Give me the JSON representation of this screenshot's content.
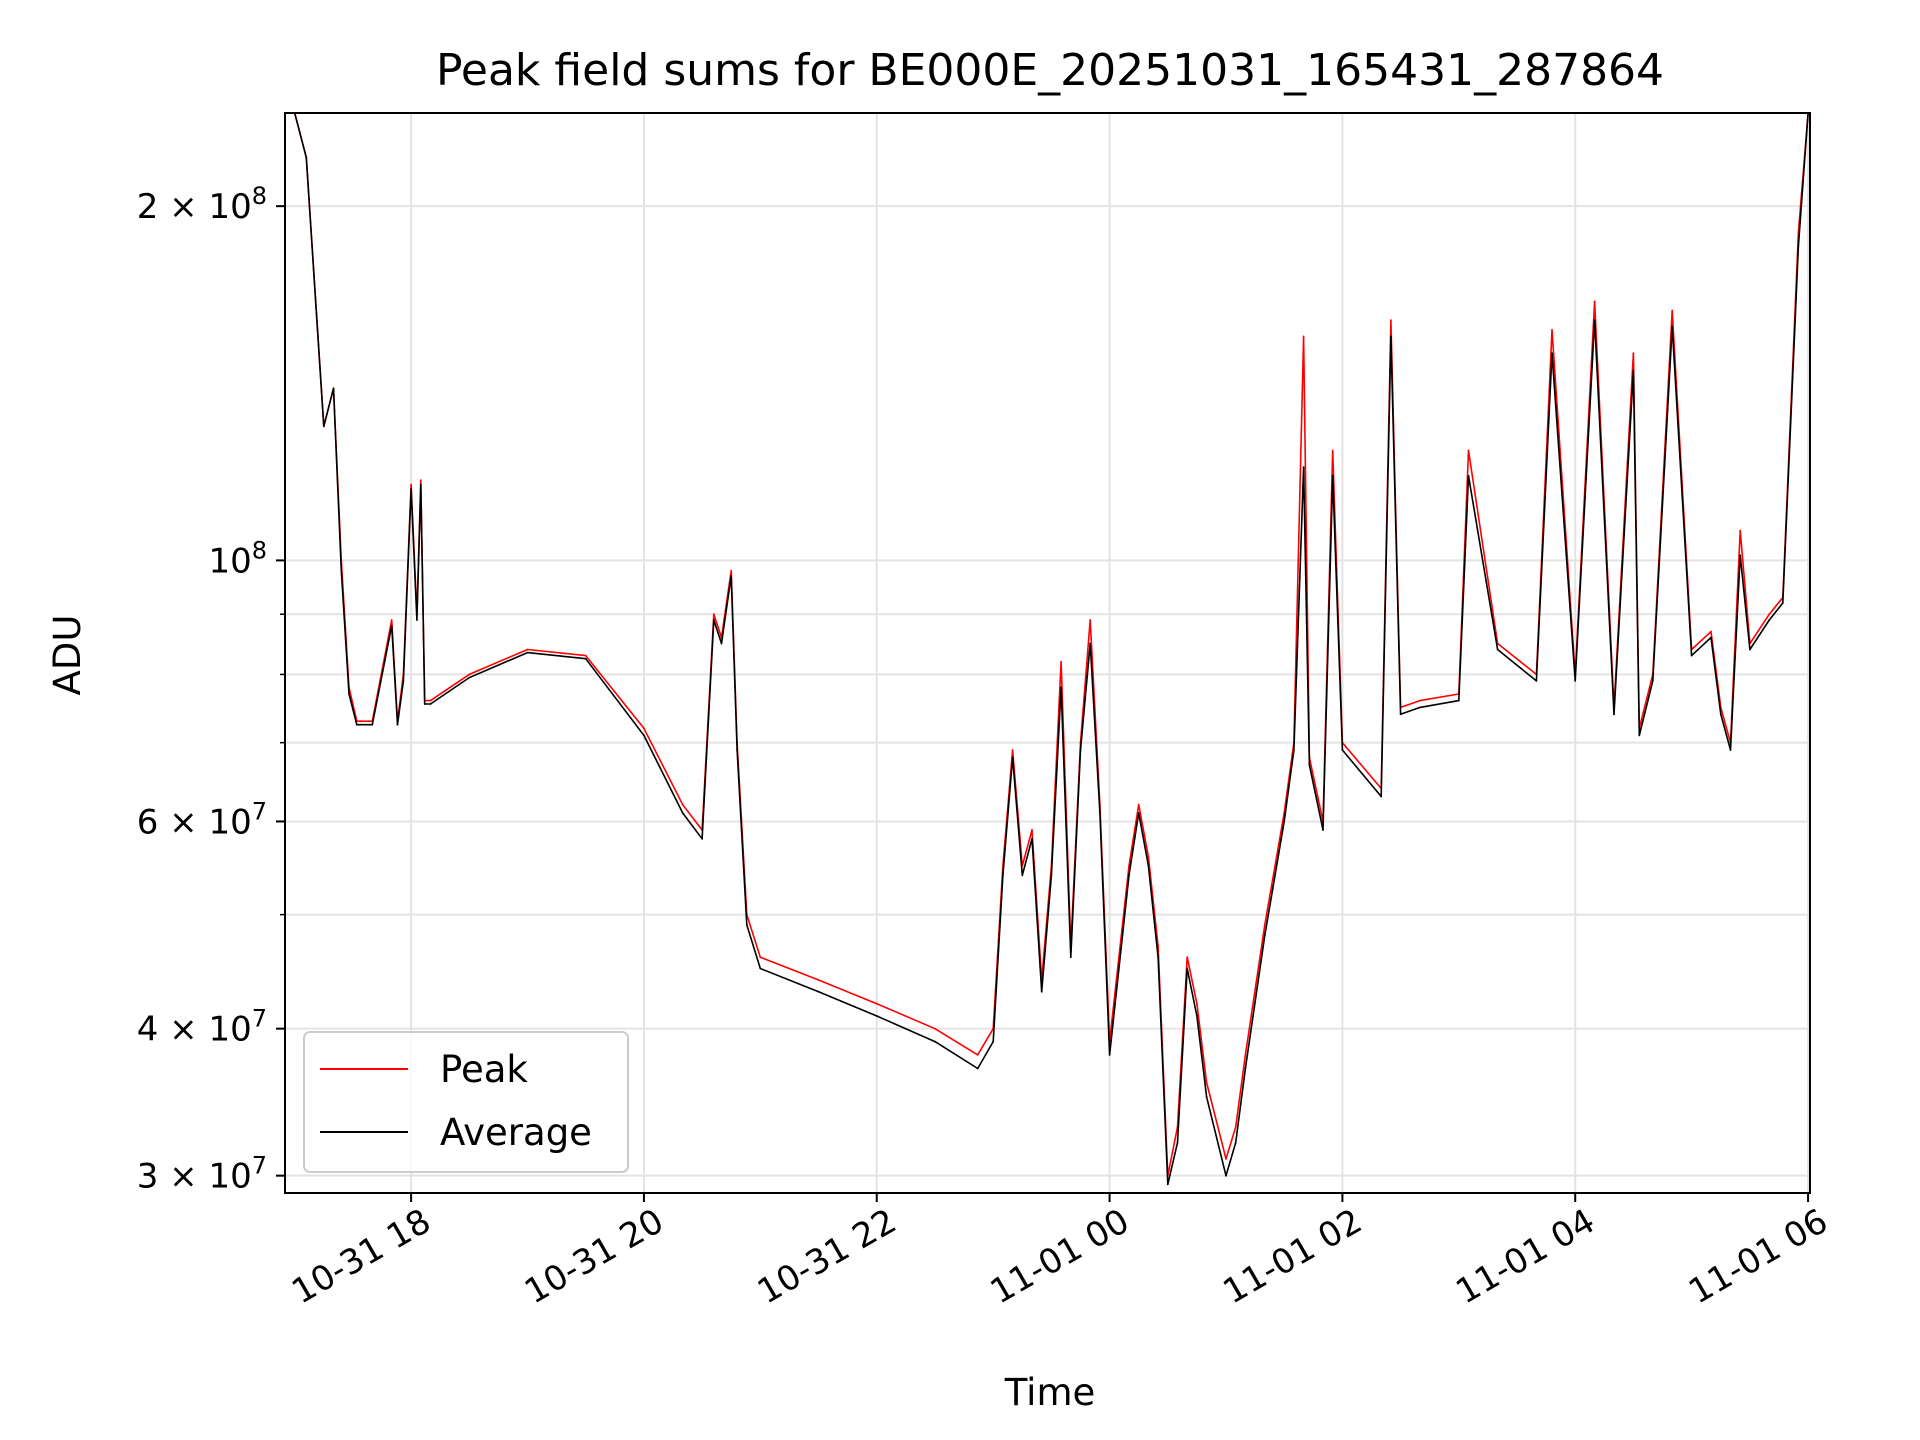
{
  "chart_data": {
    "type": "line",
    "title": "Peak field sums for BE000E_20251031_165431_287864",
    "xlabel": "Time",
    "ylabel": "ADU",
    "yscale": "log",
    "ylim": [
      29000000,
      240000000
    ],
    "xlim": [
      "2025-10-31 16:55",
      "2025-11-01 06:01"
    ],
    "grid": true,
    "legend": "lower-left",
    "colors": {
      "Peak": "#ff0000",
      "Average": "#000000"
    },
    "x_ticks": [
      {
        "value": "2025-10-31 18:00",
        "label": "10-31 18"
      },
      {
        "value": "2025-10-31 20:00",
        "label": "10-31 20"
      },
      {
        "value": "2025-10-31 22:00",
        "label": "10-31 22"
      },
      {
        "value": "2025-11-01 00:00",
        "label": "11-01 00"
      },
      {
        "value": "2025-11-01 02:00",
        "label": "11-01 02"
      },
      {
        "value": "2025-11-01 04:00",
        "label": "11-01 04"
      },
      {
        "value": "2025-11-01 06:00",
        "label": "11-01 06"
      }
    ],
    "y_ticks": [
      {
        "value": 30000000,
        "base": "3 × 10",
        "exp": "7"
      },
      {
        "value": 40000000,
        "base": "4 × 10",
        "exp": "7"
      },
      {
        "value": 60000000,
        "base": "6 × 10",
        "exp": "7"
      },
      {
        "value": 100000000,
        "base": "10",
        "exp": "8"
      },
      {
        "value": 200000000,
        "base": "2 × 10",
        "exp": "8"
      }
    ],
    "y_minor_ticks": [
      50000000,
      70000000,
      80000000,
      90000000
    ],
    "series": [
      {
        "name": "Peak",
        "x": [
          "2025-10-31 17:00",
          "2025-10-31 17:06",
          "2025-10-31 17:15",
          "2025-10-31 17:20",
          "2025-10-31 17:24",
          "2025-10-31 17:28",
          "2025-10-31 17:32",
          "2025-10-31 17:34",
          "2025-10-31 17:40",
          "2025-10-31 17:50",
          "2025-10-31 17:53",
          "2025-10-31 17:56",
          "2025-10-31 18:00",
          "2025-10-31 18:03",
          "2025-10-31 18:05",
          "2025-10-31 18:07",
          "2025-10-31 18:10",
          "2025-10-31 18:30",
          "2025-10-31 19:00",
          "2025-10-31 19:30",
          "2025-10-31 20:00",
          "2025-10-31 20:20",
          "2025-10-31 20:30",
          "2025-10-31 20:36",
          "2025-10-31 20:40",
          "2025-10-31 20:45",
          "2025-10-31 20:48",
          "2025-10-31 20:53",
          "2025-10-31 21:00",
          "2025-10-31 21:30",
          "2025-10-31 22:00",
          "2025-10-31 22:30",
          "2025-10-31 22:52",
          "2025-10-31 23:00",
          "2025-10-31 23:05",
          "2025-10-31 23:10",
          "2025-10-31 23:15",
          "2025-10-31 23:20",
          "2025-10-31 23:25",
          "2025-10-31 23:30",
          "2025-10-31 23:35",
          "2025-10-31 23:40",
          "2025-10-31 23:45",
          "2025-10-31 23:50",
          "2025-10-31 23:55",
          "2025-11-01 00:00",
          "2025-11-01 00:10",
          "2025-11-01 00:15",
          "2025-11-01 00:20",
          "2025-11-01 00:25",
          "2025-11-01 00:30",
          "2025-11-01 00:35",
          "2025-11-01 00:40",
          "2025-11-01 00:45",
          "2025-11-01 00:50",
          "2025-11-01 01:00",
          "2025-11-01 01:05",
          "2025-11-01 01:10",
          "2025-11-01 01:20",
          "2025-11-01 01:30",
          "2025-11-01 01:35",
          "2025-11-01 01:40",
          "2025-11-01 01:43",
          "2025-11-01 01:50",
          "2025-11-01 01:55",
          "2025-11-01 02:00",
          "2025-11-01 02:20",
          "2025-11-01 02:25",
          "2025-11-01 02:30",
          "2025-11-01 02:40",
          "2025-11-01 03:00",
          "2025-11-01 03:05",
          "2025-11-01 03:20",
          "2025-11-01 03:40",
          "2025-11-01 03:48",
          "2025-11-01 04:00",
          "2025-11-01 04:10",
          "2025-11-01 04:20",
          "2025-11-01 04:30",
          "2025-11-01 04:33",
          "2025-11-01 04:40",
          "2025-11-01 04:50",
          "2025-11-01 05:00",
          "2025-11-01 05:10",
          "2025-11-01 05:15",
          "2025-11-01 05:20",
          "2025-11-01 05:25",
          "2025-11-01 05:30",
          "2025-11-01 05:40",
          "2025-11-01 05:47",
          "2025-11-01 05:55",
          "2025-11-01 06:00"
        ],
        "y": [
          240000000,
          220000000,
          130000000,
          140000000,
          100000000,
          78000000,
          73000000,
          73000000,
          73000000,
          89000000,
          73000000,
          80000000,
          116000000,
          90000000,
          117000000,
          76000000,
          76000000,
          80000000,
          84000000,
          83000000,
          72000000,
          62000000,
          59000000,
          90000000,
          86000000,
          98000000,
          70000000,
          50000000,
          46000000,
          44000000,
          42000000,
          40000000,
          38000000,
          40000000,
          55000000,
          69000000,
          55000000,
          59000000,
          44000000,
          55000000,
          82000000,
          47000000,
          70000000,
          89000000,
          62000000,
          39000000,
          55000000,
          62000000,
          56000000,
          47000000,
          30000000,
          33000000,
          46000000,
          42000000,
          36000000,
          31000000,
          33000000,
          38000000,
          49000000,
          61000000,
          70000000,
          155000000,
          68000000,
          60000000,
          124000000,
          70000000,
          64000000,
          160000000,
          75000000,
          76000000,
          77000000,
          124000000,
          85000000,
          80000000,
          157000000,
          80000000,
          166000000,
          75000000,
          150000000,
          72000000,
          80000000,
          163000000,
          84000000,
          87000000,
          75000000,
          70000000,
          106000000,
          85000000,
          90000000,
          93000000,
          190000000,
          240000000
        ]
      },
      {
        "name": "Average",
        "x": [
          "2025-10-31 17:00",
          "2025-10-31 17:06",
          "2025-10-31 17:15",
          "2025-10-31 17:20",
          "2025-10-31 17:24",
          "2025-10-31 17:28",
          "2025-10-31 17:32",
          "2025-10-31 17:34",
          "2025-10-31 17:40",
          "2025-10-31 17:50",
          "2025-10-31 17:53",
          "2025-10-31 17:56",
          "2025-10-31 18:00",
          "2025-10-31 18:03",
          "2025-10-31 18:05",
          "2025-10-31 18:07",
          "2025-10-31 18:10",
          "2025-10-31 18:30",
          "2025-10-31 19:00",
          "2025-10-31 19:30",
          "2025-10-31 20:00",
          "2025-10-31 20:20",
          "2025-10-31 20:30",
          "2025-10-31 20:36",
          "2025-10-31 20:40",
          "2025-10-31 20:45",
          "2025-10-31 20:48",
          "2025-10-31 20:53",
          "2025-10-31 21:00",
          "2025-10-31 21:30",
          "2025-10-31 22:00",
          "2025-10-31 22:30",
          "2025-10-31 22:52",
          "2025-10-31 23:00",
          "2025-10-31 23:05",
          "2025-10-31 23:10",
          "2025-10-31 23:15",
          "2025-10-31 23:20",
          "2025-10-31 23:25",
          "2025-10-31 23:30",
          "2025-10-31 23:35",
          "2025-10-31 23:40",
          "2025-10-31 23:45",
          "2025-10-31 23:50",
          "2025-10-31 23:55",
          "2025-11-01 00:00",
          "2025-11-01 00:10",
          "2025-11-01 00:15",
          "2025-11-01 00:20",
          "2025-11-01 00:25",
          "2025-11-01 00:30",
          "2025-11-01 00:35",
          "2025-11-01 00:40",
          "2025-11-01 00:45",
          "2025-11-01 00:50",
          "2025-11-01 01:00",
          "2025-11-01 01:05",
          "2025-11-01 01:10",
          "2025-11-01 01:20",
          "2025-11-01 01:30",
          "2025-11-01 01:35",
          "2025-11-01 01:40",
          "2025-11-01 01:43",
          "2025-11-01 01:50",
          "2025-11-01 01:55",
          "2025-11-01 02:00",
          "2025-11-01 02:20",
          "2025-11-01 02:25",
          "2025-11-01 02:30",
          "2025-11-01 02:40",
          "2025-11-01 03:00",
          "2025-11-01 03:05",
          "2025-11-01 03:20",
          "2025-11-01 03:40",
          "2025-11-01 03:48",
          "2025-11-01 04:00",
          "2025-11-01 04:10",
          "2025-11-01 04:20",
          "2025-11-01 04:30",
          "2025-11-01 04:33",
          "2025-11-01 04:40",
          "2025-11-01 04:50",
          "2025-11-01 05:00",
          "2025-11-01 05:10",
          "2025-11-01 05:15",
          "2025-11-01 05:20",
          "2025-11-01 05:25",
          "2025-11-01 05:30",
          "2025-11-01 05:40",
          "2025-11-01 05:47",
          "2025-11-01 05:55",
          "2025-11-01 06:00"
        ],
        "y": [
          240000000,
          220000000,
          130000000,
          140000000,
          98000000,
          77000000,
          72500000,
          72500000,
          72500000,
          88000000,
          72500000,
          79000000,
          115000000,
          89000000,
          116000000,
          75500000,
          75500000,
          79500000,
          83500000,
          82500000,
          71000000,
          61000000,
          58000000,
          89000000,
          85000000,
          97000000,
          69000000,
          49000000,
          45000000,
          43000000,
          41000000,
          39000000,
          37000000,
          39000000,
          54000000,
          68000000,
          54000000,
          58000000,
          43000000,
          54000000,
          78000000,
          46000000,
          69000000,
          85000000,
          61000000,
          38000000,
          54000000,
          61000000,
          55000000,
          46000000,
          29500000,
          32000000,
          45000000,
          41000000,
          35000000,
          30000000,
          32000000,
          37000000,
          48000000,
          60000000,
          69000000,
          120000000,
          67000000,
          59000000,
          118000000,
          69000000,
          63000000,
          155000000,
          74000000,
          75000000,
          76000000,
          118000000,
          84000000,
          79000000,
          150000000,
          79000000,
          160000000,
          74000000,
          145000000,
          71000000,
          79000000,
          158000000,
          83000000,
          86000000,
          74000000,
          69000000,
          101000000,
          84000000,
          89000000,
          92000000,
          185000000,
          240000000
        ]
      }
    ]
  }
}
